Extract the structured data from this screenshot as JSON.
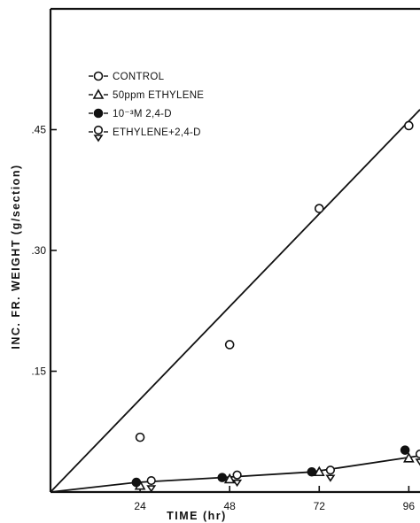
{
  "chart_data": {
    "type": "scatter",
    "title": "",
    "xlabel": "TIME (hr)",
    "ylabel": "INC. FR. WEIGHT (g/section)",
    "xlim": [
      0,
      99
    ],
    "ylim": [
      0,
      0.6
    ],
    "x_ticks": [
      24,
      48,
      72,
      96
    ],
    "x_tick_labels": [
      "24",
      "48",
      "72",
      "96"
    ],
    "y_ticks": [
      0.15,
      0.3,
      0.45
    ],
    "y_tick_labels": [
      ".15",
      ".30",
      ".45"
    ],
    "grid": false,
    "legend_position": "top-left",
    "series": [
      {
        "name": "CONTROL",
        "marker": "open-circle",
        "points": [
          [
            24,
            0.068
          ],
          [
            48,
            0.183
          ],
          [
            72,
            0.352
          ],
          [
            96,
            0.455
          ]
        ],
        "fit": {
          "type": "line",
          "from": [
            0,
            0.0
          ],
          "to": [
            99,
            0.475
          ]
        }
      },
      {
        "name": "50ppm ETHYLENE",
        "marker": "open-triangle",
        "points": [
          [
            24,
            0.008
          ],
          [
            48,
            0.016
          ],
          [
            72,
            0.025
          ],
          [
            96,
            0.042
          ]
        ]
      },
      {
        "name": "10⁻³M 2,4-D",
        "marker": "filled-circle",
        "points": [
          [
            23,
            0.012
          ],
          [
            46,
            0.018
          ],
          [
            70,
            0.025
          ],
          [
            95,
            0.052
          ]
        ],
        "fit": {
          "type": "line-segments",
          "through": [
            [
              0,
              0.0
            ],
            [
              23,
              0.012
            ],
            [
              46,
              0.018
            ],
            [
              70,
              0.025
            ],
            [
              99,
              0.045
            ]
          ]
        }
      },
      {
        "name": "ETHYLENE+2,4-D",
        "marker": "circle-triangle",
        "points": [
          [
            27,
            0.012
          ],
          [
            50,
            0.019
          ],
          [
            75,
            0.025
          ],
          [
            99,
            0.045
          ]
        ]
      }
    ],
    "colors": {
      "ink": "#111111",
      "background": "#ffffff"
    }
  }
}
